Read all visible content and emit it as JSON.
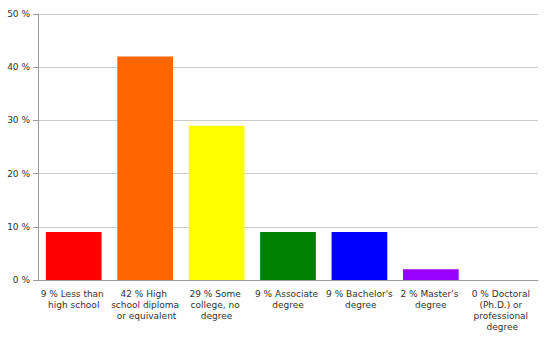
{
  "chart_data": {
    "type": "bar",
    "categories": [
      "9 % Less than high school",
      "42 % High school diploma or equivalent",
      "29 % Some college, no degree",
      "9 % Associate degree",
      "9 % Bachelor's degree",
      "2 % Master's degree",
      "0 % Doctoral (Ph.D.) or professional degree"
    ],
    "values": [
      9,
      42,
      29,
      9,
      9,
      2,
      0
    ],
    "colors": [
      "#ff0000",
      "#ff6600",
      "#ffff00",
      "#008000",
      "#0000ff",
      "#9900ff",
      "#ff00ff"
    ],
    "ylim": [
      0,
      50
    ],
    "yticks": [
      {
        "value": 0,
        "label": "0 %"
      },
      {
        "value": 10,
        "label": "10 %"
      },
      {
        "value": 20,
        "label": "20 %"
      },
      {
        "value": 30,
        "label": "30 %"
      },
      {
        "value": 40,
        "label": "40 %"
      },
      {
        "value": 50,
        "label": "50 %"
      }
    ],
    "grid": true
  }
}
